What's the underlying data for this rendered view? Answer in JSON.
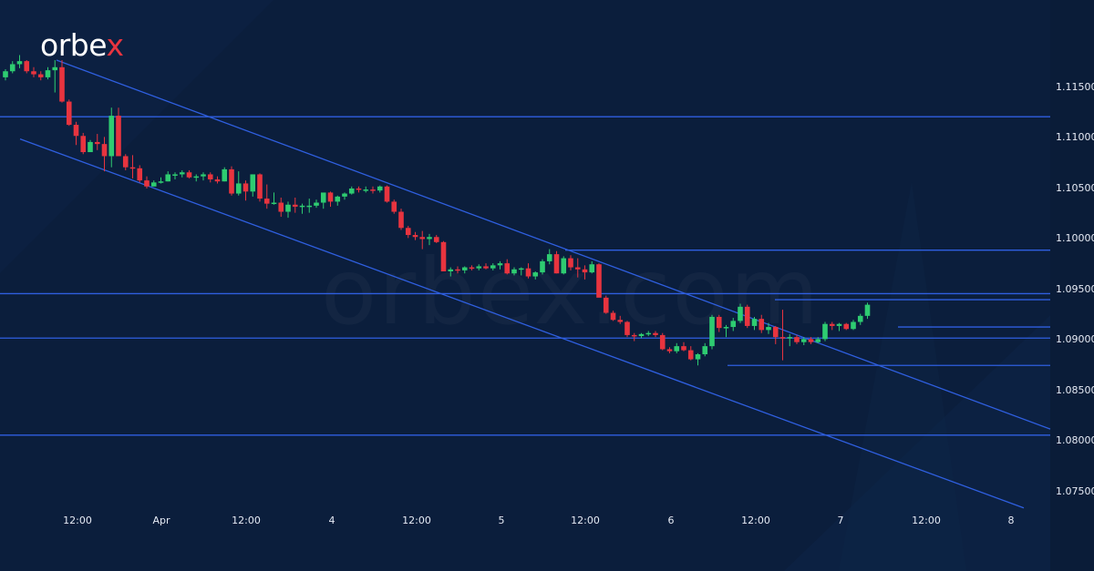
{
  "brand": {
    "logo_main": "orbe",
    "logo_accent": "x",
    "watermark": "orbex.com"
  },
  "colors": {
    "background": "#0b1e3c",
    "up": "#2ecc71",
    "down": "#e8343f",
    "lines": "#2f5fe0",
    "text": "#e6ebf5"
  },
  "chart_data": {
    "type": "candlestick",
    "title": "",
    "xlabel": "",
    "ylabel": "",
    "ylim": [
      1.0725,
      1.1185
    ],
    "y_ticks": [
      "1.11500",
      "1.11000",
      "1.10500",
      "1.10000",
      "1.09500",
      "1.09000",
      "1.08500",
      "1.08000",
      "1.07500"
    ],
    "x_ticks": [
      {
        "label": "12:00",
        "x": 85
      },
      {
        "label": "Apr",
        "x": 177
      },
      {
        "label": "12:00",
        "x": 270
      },
      {
        "label": "4",
        "x": 364
      },
      {
        "label": "12:00",
        "x": 457
      },
      {
        "label": "5",
        "x": 550
      },
      {
        "label": "12:00",
        "x": 642
      },
      {
        "label": "6",
        "x": 736
      },
      {
        "label": "12:00",
        "x": 829
      },
      {
        "label": "7",
        "x": 922
      },
      {
        "label": "12:00",
        "x": 1016
      },
      {
        "label": "8",
        "x": 1109
      }
    ],
    "horizontal_levels": [
      {
        "price": 1.1121,
        "x_start": 0
      },
      {
        "price": 1.0989,
        "x_start": 620
      },
      {
        "price": 1.0946,
        "x_start": 0
      },
      {
        "price": 1.094,
        "x_start": 850
      },
      {
        "price": 1.0913,
        "x_start": 985
      },
      {
        "price": 1.0902,
        "x_start": 0
      },
      {
        "price": 1.0875,
        "x_start": 798
      },
      {
        "price": 1.0806,
        "x_start": 0
      }
    ],
    "channel": {
      "upper": {
        "x1": 62,
        "p1": 1.1177,
        "x2": 1152,
        "p2": 1.0812
      },
      "lower": {
        "x1": 22,
        "p1": 1.1099,
        "x2": 1123,
        "p2": 1.0734
      }
    },
    "candles_x_start": 6,
    "candles_spacing": 7.75,
    "candles": [
      [
        1.116,
        1.1168,
        1.1157,
        1.1166
      ],
      [
        1.1166,
        1.1176,
        1.1164,
        1.1173
      ],
      [
        1.1173,
        1.1182,
        1.1169,
        1.1176
      ],
      [
        1.1176,
        1.1177,
        1.1164,
        1.1166
      ],
      [
        1.1166,
        1.117,
        1.116,
        1.1163
      ],
      [
        1.1163,
        1.1166,
        1.1157,
        1.116
      ],
      [
        1.116,
        1.117,
        1.1158,
        1.1167
      ],
      [
        1.1167,
        1.1177,
        1.1145,
        1.117
      ],
      [
        1.117,
        1.1177,
        1.1135,
        1.1136
      ],
      [
        1.1136,
        1.1138,
        1.1112,
        1.1113
      ],
      [
        1.1113,
        1.1116,
        1.1093,
        1.1102
      ],
      [
        1.1102,
        1.1105,
        1.1084,
        1.1086
      ],
      [
        1.1086,
        1.1098,
        1.1086,
        1.1096
      ],
      [
        1.1096,
        1.1104,
        1.1088,
        1.1094
      ],
      [
        1.1094,
        1.1101,
        1.1067,
        1.1082
      ],
      [
        1.1082,
        1.113,
        1.1071,
        1.1122
      ],
      [
        1.1122,
        1.113,
        1.1082,
        1.1082
      ],
      [
        1.1082,
        1.1084,
        1.1068,
        1.1071
      ],
      [
        1.1071,
        1.1083,
        1.106,
        1.107
      ],
      [
        1.107,
        1.1073,
        1.1056,
        1.1058
      ],
      [
        1.1058,
        1.1062,
        1.105,
        1.1052
      ],
      [
        1.1052,
        1.1058,
        1.1052,
        1.1056
      ],
      [
        1.1056,
        1.1061,
        1.1055,
        1.1057
      ],
      [
        1.1057,
        1.1067,
        1.1057,
        1.1064
      ],
      [
        1.1064,
        1.1066,
        1.1059,
        1.1064
      ],
      [
        1.1064,
        1.1068,
        1.1061,
        1.1066
      ],
      [
        1.1066,
        1.1068,
        1.106,
        1.1061
      ],
      [
        1.1061,
        1.1064,
        1.1057,
        1.1062
      ],
      [
        1.1062,
        1.1066,
        1.1058,
        1.1064
      ],
      [
        1.1064,
        1.1066,
        1.1056,
        1.1059
      ],
      [
        1.1059,
        1.1062,
        1.1055,
        1.1057
      ],
      [
        1.1057,
        1.1071,
        1.1057,
        1.1069
      ],
      [
        1.1069,
        1.1072,
        1.1043,
        1.1045
      ],
      [
        1.1045,
        1.1067,
        1.1043,
        1.1055
      ],
      [
        1.1055,
        1.1058,
        1.1038,
        1.1047
      ],
      [
        1.1047,
        1.1064,
        1.1042,
        1.1064
      ],
      [
        1.1064,
        1.1065,
        1.1037,
        1.104
      ],
      [
        1.104,
        1.1054,
        1.103,
        1.1035
      ],
      [
        1.1035,
        1.1046,
        1.1034,
        1.1036
      ],
      [
        1.1036,
        1.1041,
        1.1022,
        1.1027
      ],
      [
        1.1027,
        1.1037,
        1.1021,
        1.1034
      ],
      [
        1.1034,
        1.1041,
        1.1026,
        1.1032
      ],
      [
        1.1032,
        1.1035,
        1.1025,
        1.1033
      ],
      [
        1.1033,
        1.104,
        1.1026,
        1.1033
      ],
      [
        1.1033,
        1.1039,
        1.1031,
        1.1036
      ],
      [
        1.1036,
        1.1044,
        1.103,
        1.1046
      ],
      [
        1.1046,
        1.1047,
        1.1032,
        1.1037
      ],
      [
        1.1037,
        1.1043,
        1.1033,
        1.1042
      ],
      [
        1.1042,
        1.1046,
        1.1039,
        1.1045
      ],
      [
        1.1045,
        1.1052,
        1.1044,
        1.105
      ],
      [
        1.105,
        1.1052,
        1.1046,
        1.1049
      ],
      [
        1.1049,
        1.1052,
        1.1046,
        1.1049
      ],
      [
        1.1049,
        1.1052,
        1.1045,
        1.1048
      ],
      [
        1.1048,
        1.1053,
        1.1046,
        1.1052
      ],
      [
        1.1052,
        1.1053,
        1.1036,
        1.1037
      ],
      [
        1.1037,
        1.1039,
        1.1025,
        1.1027
      ],
      [
        1.1027,
        1.103,
        1.1009,
        1.1011
      ],
      [
        1.1011,
        1.1013,
        1.1001,
        1.1004
      ],
      [
        1.1004,
        1.1007,
        1.0999,
        1.1002
      ],
      [
        1.1002,
        1.1008,
        1.099,
        1.1
      ],
      [
        1.1,
        1.1005,
        1.0994,
        1.1002
      ],
      [
        1.1002,
        1.1004,
        1.0996,
        1.0997
      ],
      [
        1.0997,
        1.0998,
        1.0968,
        1.0968
      ],
      [
        1.0968,
        1.0972,
        1.0963,
        1.097
      ],
      [
        1.097,
        1.0973,
        1.0966,
        1.0969
      ],
      [
        1.0969,
        1.0973,
        1.0966,
        1.0972
      ],
      [
        1.0972,
        1.0974,
        1.0969,
        1.0971
      ],
      [
        1.0971,
        1.0975,
        1.0969,
        1.0973
      ],
      [
        1.0973,
        1.0976,
        1.097,
        1.0971
      ],
      [
        1.0971,
        1.0976,
        1.0969,
        1.0974
      ],
      [
        1.0974,
        1.0978,
        1.097,
        1.0976
      ],
      [
        1.0976,
        1.098,
        1.0965,
        1.0966
      ],
      [
        1.0966,
        1.0972,
        1.0964,
        1.097
      ],
      [
        1.097,
        1.0972,
        1.0964,
        1.0971
      ],
      [
        1.0971,
        1.0976,
        1.0961,
        1.0963
      ],
      [
        1.0963,
        1.0968,
        1.096,
        1.0967
      ],
      [
        1.0967,
        1.098,
        1.0965,
        1.0978
      ],
      [
        1.0978,
        1.099,
        1.0975,
        1.0985
      ],
      [
        1.0985,
        1.0988,
        1.0966,
        1.0966
      ],
      [
        1.0966,
        1.0983,
        1.0965,
        1.0981
      ],
      [
        1.0981,
        1.0984,
        1.0969,
        1.0972
      ],
      [
        1.0972,
        1.0981,
        1.0962,
        1.097
      ],
      [
        1.097,
        1.0974,
        1.096,
        1.0967
      ],
      [
        1.0967,
        1.0978,
        1.0966,
        1.0975
      ],
      [
        1.0975,
        1.0976,
        1.0943,
        1.0942
      ],
      [
        1.0942,
        1.0944,
        1.0926,
        1.0927
      ],
      [
        1.0927,
        1.0929,
        1.0919,
        1.092
      ],
      [
        1.092,
        1.0924,
        1.0916,
        1.0918
      ],
      [
        1.0918,
        1.0919,
        1.0903,
        1.0905
      ],
      [
        1.0905,
        1.0907,
        1.0899,
        1.0904
      ],
      [
        1.0904,
        1.0907,
        1.0902,
        1.0906
      ],
      [
        1.0906,
        1.0909,
        1.0904,
        1.0907
      ],
      [
        1.0907,
        1.0909,
        1.0903,
        1.0905
      ],
      [
        1.0905,
        1.0907,
        1.089,
        1.0891
      ],
      [
        1.0891,
        1.0893,
        1.0887,
        1.0889
      ],
      [
        1.0889,
        1.0897,
        1.0887,
        1.0894
      ],
      [
        1.0894,
        1.0898,
        1.0889,
        1.089
      ],
      [
        1.089,
        1.0894,
        1.088,
        1.0881
      ],
      [
        1.0881,
        1.0887,
        1.0875,
        1.0886
      ],
      [
        1.0886,
        1.0897,
        1.0884,
        1.0894
      ],
      [
        1.0894,
        1.0925,
        1.0891,
        1.0923
      ],
      [
        1.0923,
        1.0925,
        1.0908,
        1.0912
      ],
      [
        1.0912,
        1.0915,
        1.0903,
        1.0913
      ],
      [
        1.0913,
        1.0922,
        1.0909,
        1.0919
      ],
      [
        1.0919,
        1.0936,
        1.0917,
        1.0933
      ],
      [
        1.0933,
        1.0935,
        1.0912,
        1.0914
      ],
      [
        1.0914,
        1.0923,
        1.091,
        1.0921
      ],
      [
        1.0921,
        1.0925,
        1.0907,
        1.091
      ],
      [
        1.091,
        1.0917,
        1.0906,
        1.0913
      ],
      [
        1.0913,
        1.0914,
        1.0896,
        1.0903
      ],
      [
        1.0903,
        1.093,
        1.088,
        1.0902
      ],
      [
        1.0902,
        1.0906,
        1.0894,
        1.0903
      ],
      [
        1.0903,
        1.0905,
        1.0896,
        1.0898
      ],
      [
        1.0898,
        1.0903,
        1.0895,
        1.0901
      ],
      [
        1.0901,
        1.0903,
        1.0896,
        1.0898
      ],
      [
        1.0898,
        1.0903,
        1.0897,
        1.0901
      ],
      [
        1.0901,
        1.0918,
        1.0899,
        1.0916
      ],
      [
        1.0916,
        1.0918,
        1.091,
        1.0914
      ],
      [
        1.0914,
        1.0917,
        1.0909,
        1.0916
      ],
      [
        1.0916,
        1.0917,
        1.091,
        1.0911
      ],
      [
        1.0911,
        1.092,
        1.091,
        1.0918
      ],
      [
        1.0918,
        1.0926,
        1.0915,
        1.0924
      ],
      [
        1.0924,
        1.0937,
        1.0921,
        1.0935
      ]
    ]
  }
}
